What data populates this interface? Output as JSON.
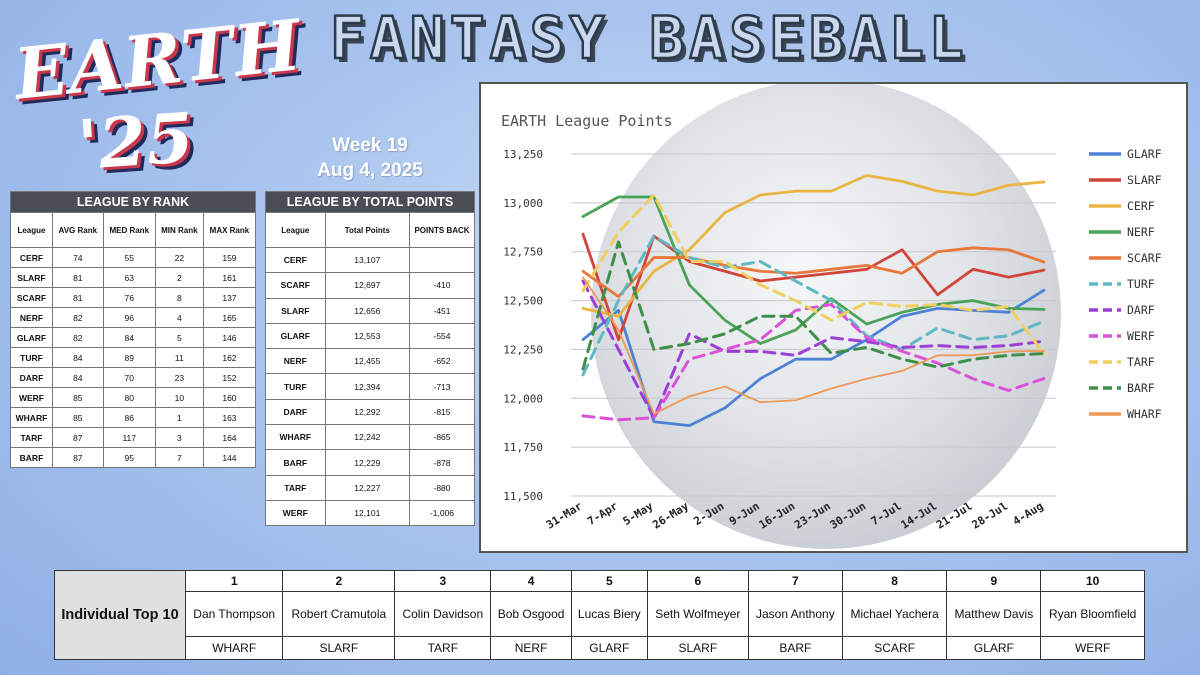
{
  "logo": {
    "line1": "EARTH",
    "line2": "'25"
  },
  "title": "FANTASY BASEBALL",
  "week": {
    "label": "Week 19",
    "date": "Aug 4, 2025"
  },
  "rank_table": {
    "title": "LEAGUE BY RANK",
    "headers": [
      "League",
      "AVG Rank",
      "MED Rank",
      "MIN Rank",
      "MAX Rank"
    ],
    "rows": [
      [
        "CERF",
        "74",
        "55",
        "22",
        "159"
      ],
      [
        "SLARF",
        "81",
        "63",
        "2",
        "161"
      ],
      [
        "SCARF",
        "81",
        "76",
        "8",
        "137"
      ],
      [
        "NERF",
        "82",
        "96",
        "4",
        "165"
      ],
      [
        "GLARF",
        "82",
        "84",
        "5",
        "146"
      ],
      [
        "TURF",
        "84",
        "89",
        "11",
        "162"
      ],
      [
        "DARF",
        "84",
        "70",
        "23",
        "152"
      ],
      [
        "WERF",
        "85",
        "80",
        "10",
        "160"
      ],
      [
        "WHARF",
        "85",
        "86",
        "1",
        "163"
      ],
      [
        "TARF",
        "87",
        "117",
        "3",
        "164"
      ],
      [
        "BARF",
        "87",
        "95",
        "7",
        "144"
      ]
    ]
  },
  "points_table": {
    "title": "LEAGUE BY TOTAL POINTS",
    "headers": [
      "League",
      "Total Points",
      "POINTS BACK"
    ],
    "rows": [
      [
        "CERF",
        "13,107",
        ""
      ],
      [
        "SCARF",
        "12,697",
        "-410"
      ],
      [
        "SLARF",
        "12,656",
        "-451"
      ],
      [
        "GLARF",
        "12,553",
        "-554"
      ],
      [
        "NERF",
        "12,455",
        "-652"
      ],
      [
        "TURF",
        "12,394",
        "-713"
      ],
      [
        "DARF",
        "12,292",
        "-815"
      ],
      [
        "WHARF",
        "12,242",
        "-865"
      ],
      [
        "BARF",
        "12,229",
        "-878"
      ],
      [
        "TARF",
        "12,227",
        "-880"
      ],
      [
        "WERF",
        "12,101",
        "-1,006"
      ]
    ]
  },
  "chart_data": {
    "type": "line",
    "title": "EARTH League Points",
    "xlabel": "",
    "ylabel": "",
    "ylim": [
      11500,
      13250
    ],
    "yticks": [
      "11,500",
      "11,750",
      "12,000",
      "12,250",
      "12,500",
      "12,750",
      "13,000",
      "13,250"
    ],
    "ytick_values": [
      11500,
      11750,
      12000,
      12250,
      12500,
      12750,
      13000,
      13250
    ],
    "x": [
      "31-Mar",
      "7-Apr",
      "5-May",
      "26-May",
      "2-Jun",
      "9-Jun",
      "16-Jun",
      "23-Jun",
      "30-Jun",
      "7-Jul",
      "14-Jul",
      "21-Jul",
      "28-Jul",
      "4-Aug"
    ],
    "legend_position": "right",
    "grid": true,
    "series": [
      {
        "name": "GLARF",
        "color": "#4e82d6",
        "dashed": false,
        "values": [
          12300,
          12450,
          11880,
          11860,
          11950,
          12100,
          12200,
          12200,
          12300,
          12420,
          12460,
          12450,
          12440,
          12553
        ]
      },
      {
        "name": "SLARF",
        "color": "#d2453a",
        "dashed": false,
        "values": [
          12840,
          12300,
          12830,
          12700,
          12650,
          12600,
          12620,
          12640,
          12660,
          12760,
          12530,
          12660,
          12620,
          12656
        ]
      },
      {
        "name": "CERF",
        "color": "#e9b643",
        "dashed": false,
        "values": [
          12460,
          12420,
          12650,
          12760,
          12950,
          13040,
          13060,
          13060,
          13140,
          13110,
          13060,
          13040,
          13090,
          13107
        ]
      },
      {
        "name": "NERF",
        "color": "#4aa356",
        "dashed": false,
        "values": [
          12930,
          13030,
          13030,
          12580,
          12400,
          12280,
          12350,
          12510,
          12380,
          12440,
          12480,
          12500,
          12460,
          12455
        ]
      },
      {
        "name": "SCARF",
        "color": "#e7773a",
        "dashed": false,
        "values": [
          12650,
          12520,
          12720,
          12720,
          12680,
          12650,
          12640,
          12660,
          12680,
          12640,
          12750,
          12770,
          12760,
          12697
        ]
      },
      {
        "name": "TURF",
        "color": "#5fb8c4",
        "dashed": true,
        "values": [
          12120,
          12500,
          12830,
          12720,
          12670,
          12700,
          12600,
          12500,
          12320,
          12250,
          12360,
          12300,
          12320,
          12394
        ]
      },
      {
        "name": "DARF",
        "color": "#9c3fd6",
        "dashed": true,
        "values": [
          12600,
          12250,
          11900,
          12330,
          12240,
          12240,
          12220,
          12310,
          12290,
          12260,
          12270,
          12260,
          12270,
          12292
        ]
      },
      {
        "name": "WERF",
        "color": "#db52d8",
        "dashed": true,
        "values": [
          11910,
          11890,
          11900,
          12200,
          12250,
          12300,
          12450,
          12480,
          12310,
          12240,
          12180,
          12100,
          12040,
          12101
        ]
      },
      {
        "name": "TARF",
        "color": "#f0cf5c",
        "dashed": true,
        "values": [
          12550,
          12850,
          13040,
          12700,
          12700,
          12580,
          12500,
          12400,
          12490,
          12470,
          12480,
          12450,
          12470,
          12227
        ]
      },
      {
        "name": "BARF",
        "color": "#3e8f4a",
        "dashed": true,
        "values": [
          12150,
          12800,
          12250,
          12280,
          12330,
          12420,
          12420,
          12230,
          12260,
          12200,
          12160,
          12200,
          12220,
          12229
        ]
      },
      {
        "name": "WHARF",
        "color": "#ee9955",
        "dashed": false,
        "values": [
          12620,
          12350,
          11920,
          12010,
          12060,
          11980,
          11990,
          12050,
          12100,
          12140,
          12220,
          12220,
          12240,
          12242
        ]
      }
    ]
  },
  "top10": {
    "label": "Individual Top 10",
    "players": [
      {
        "rank": "1",
        "name": "Dan Thompson",
        "team": "WHARF"
      },
      {
        "rank": "2",
        "name": "Robert Cramutola",
        "team": "SLARF"
      },
      {
        "rank": "3",
        "name": "Colin Davidson",
        "team": "TARF"
      },
      {
        "rank": "4",
        "name": "Bob Osgood",
        "team": "NERF"
      },
      {
        "rank": "5",
        "name": "Lucas Biery",
        "team": "GLARF"
      },
      {
        "rank": "6",
        "name": "Seth Wolfmeyer",
        "team": "SLARF"
      },
      {
        "rank": "7",
        "name": "Jason Anthony",
        "team": "BARF"
      },
      {
        "rank": "8",
        "name": "Michael Yachera",
        "team": "SCARF"
      },
      {
        "rank": "9",
        "name": "Matthew Davis",
        "team": "GLARF"
      },
      {
        "rank": "10",
        "name": "Ryan Bloomfield",
        "team": "WERF"
      }
    ]
  }
}
